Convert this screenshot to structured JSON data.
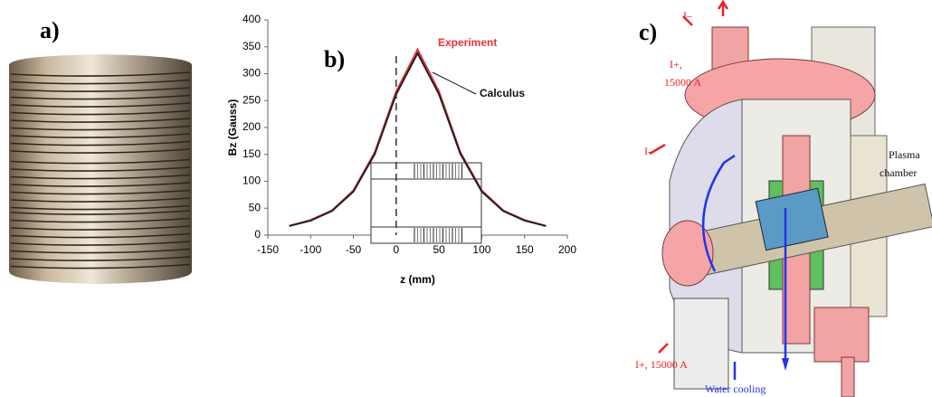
{
  "panels": {
    "a": "a)",
    "b": "b)",
    "c": "c)"
  },
  "chart_data": {
    "type": "line",
    "xlabel": "z (mm)",
    "ylabel": "Bz (Gauss)",
    "xlim": [
      -150,
      200
    ],
    "xticks": [
      -150,
      -100,
      -50,
      0,
      50,
      100,
      150,
      200
    ],
    "ylim": [
      0,
      400
    ],
    "yticks": [
      0,
      50,
      100,
      150,
      200,
      250,
      300,
      350,
      400
    ],
    "x": [
      -125,
      -100,
      -75,
      -50,
      -25,
      0,
      25,
      50,
      75,
      100,
      125,
      150,
      175
    ],
    "series": [
      {
        "name": "Experiment",
        "color": "#e8323c",
        "values": [
          17,
          28,
          46,
          83,
          154,
          267,
          345,
          267,
          154,
          83,
          46,
          28,
          17
        ]
      },
      {
        "name": "Calculus",
        "color": "#222222",
        "values": [
          17,
          27,
          45,
          81,
          151,
          262,
          338,
          262,
          151,
          81,
          45,
          27,
          17
        ]
      }
    ]
  },
  "panel_c": {
    "labels": [
      "I–",
      "I+,",
      "15000 A",
      "I–",
      "Plasma",
      "chamber",
      "I+, 15000 A",
      "Water cooling"
    ]
  }
}
